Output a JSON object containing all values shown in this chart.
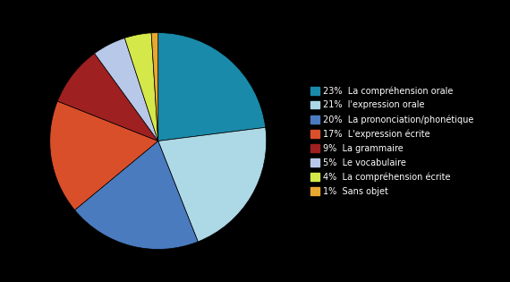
{
  "slices": [
    {
      "label": "La compréhension orale",
      "value": 23,
      "color": "#1a8aaa"
    },
    {
      "label": "l'expression orale",
      "value": 21,
      "color": "#add8e6"
    },
    {
      "label": "La prononciation/phonétique",
      "value": 20,
      "color": "#4a7bbf"
    },
    {
      "label": "L'expression écrite",
      "value": 17,
      "color": "#d94f2a"
    },
    {
      "label": "La grammaire",
      "value": 9,
      "color": "#9e2020"
    },
    {
      "label": "Le vocabulaire",
      "value": 5,
      "color": "#b8c8e8"
    },
    {
      "label": "La compréhension écrite",
      "value": 4,
      "color": "#d4e84a"
    },
    {
      "label": "Sans objet",
      "value": 1,
      "color": "#e8a830"
    }
  ],
  "background_color": "#000000",
  "text_color": "#ffffff",
  "legend_fontsize": 7.0
}
